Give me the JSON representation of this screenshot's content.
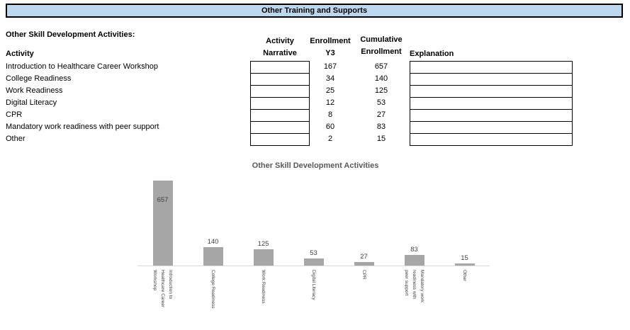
{
  "header": {
    "title": "Other Training and Supports",
    "fill_color": "#BDD7EE"
  },
  "section": {
    "label": "Other Skill Development Activities:"
  },
  "table": {
    "columns": {
      "activity": "Activity",
      "narrative": "Activity\nNarrative",
      "enrollment_y3": "Enrollment\nY3",
      "cumulative": "Cumulative\nEnrollment",
      "explanation": "Explanation"
    },
    "rows": [
      {
        "activity": "Introduction to Healthcare Career Workshop",
        "narrative": "",
        "enrollment_y3": "167",
        "cumulative": "657",
        "explanation": ""
      },
      {
        "activity": "College Readiness",
        "narrative": "",
        "enrollment_y3": "34",
        "cumulative": "140",
        "explanation": ""
      },
      {
        "activity": "Work Readiness",
        "narrative": "",
        "enrollment_y3": "25",
        "cumulative": "125",
        "explanation": ""
      },
      {
        "activity": "Digital Literacy",
        "narrative": "",
        "enrollment_y3": "12",
        "cumulative": "53",
        "explanation": ""
      },
      {
        "activity": "CPR",
        "narrative": "",
        "enrollment_y3": "8",
        "cumulative": "27",
        "explanation": ""
      },
      {
        "activity": "Mandatory work readiness with peer support",
        "narrative": "",
        "enrollment_y3": "60",
        "cumulative": "83",
        "explanation": ""
      },
      {
        "activity": "Other",
        "narrative": "",
        "enrollment_y3": "2",
        "cumulative": "15",
        "explanation": ""
      }
    ]
  },
  "chart_data": {
    "type": "bar",
    "title": "Other Skill Development Activities",
    "categories": [
      "Introduction to\nHealthcare Career\nWorkshop",
      "College Readiness",
      "Work Readiness",
      "Digital Literacy",
      "CPR",
      "Mandatory work\nreadiness with\npeer support",
      "Other"
    ],
    "values": [
      657,
      140,
      125,
      53,
      27,
      83,
      15
    ],
    "data_labels": [
      657,
      140,
      125,
      53,
      27,
      83,
      15
    ],
    "ylim": [
      0,
      700
    ],
    "bar_color": "#A6A6A6",
    "label_color": "#404040",
    "axis_color": "#D9D9D9",
    "grid": false,
    "legend": false,
    "xlabel": "",
    "ylabel": ""
  }
}
